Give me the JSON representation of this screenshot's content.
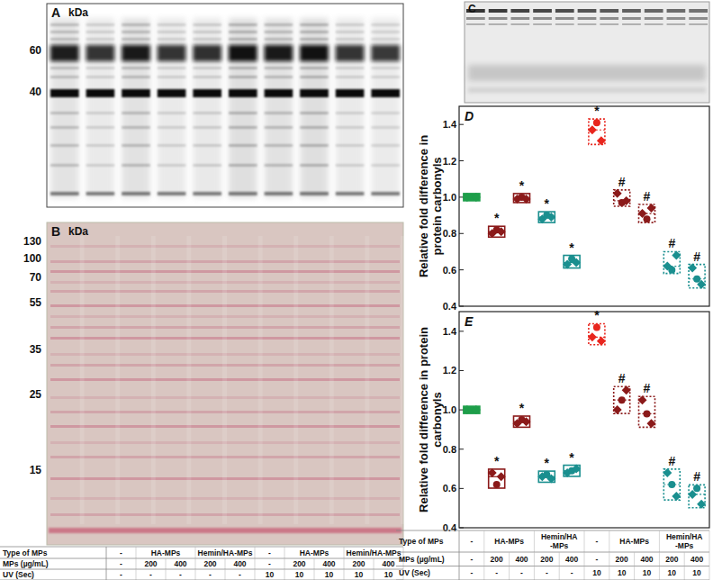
{
  "chart_data": [
    {
      "type": "box",
      "title": "D",
      "ylabel": "Relative fold difference in protein carbonyls",
      "categories": [
        null,
        null,
        null,
        null,
        null,
        null,
        null,
        null,
        null,
        null
      ],
      "colors": [
        "#1e9e4a",
        "#8b1a1a",
        "#8b1a1a",
        "#1a8f8f",
        "#1a8f8f",
        "#e8261e",
        "#8b1a1a",
        "#8b1a1a",
        "#1a8f8f",
        "#1a8f8f"
      ],
      "series": [
        {
          "marker": "diamond",
          "values": [
            1.0,
            0.8,
            0.99,
            0.88,
            0.63,
            1.37,
            1.02,
            0.91,
            0.62,
            0.61
          ]
        },
        {
          "marker": "circle",
          "values": [
            1.0,
            0.82,
            1.0,
            0.9,
            0.66,
            1.41,
            0.97,
            0.88,
            0.6,
            0.55
          ]
        },
        {
          "marker": "diamond",
          "values": [
            1.0,
            0.81,
            0.99,
            0.89,
            0.64,
            1.31,
            0.98,
            0.94,
            0.68,
            0.52
          ]
        }
      ],
      "annotations": [
        {
          "index": 1,
          "text": "*"
        },
        {
          "index": 2,
          "text": "*"
        },
        {
          "index": 3,
          "text": "*"
        },
        {
          "index": 4,
          "text": "*"
        },
        {
          "index": 5,
          "text": "*"
        },
        {
          "index": 6,
          "text": "#"
        },
        {
          "index": 7,
          "text": "#"
        },
        {
          "index": 8,
          "text": "#"
        },
        {
          "index": 9,
          "text": "#"
        }
      ],
      "ylim": [
        0.4,
        1.5
      ],
      "yticks": [
        0.4,
        0.6,
        0.8,
        {
          "value": 1,
          "label": "1.0"
        },
        1.2,
        1.4
      ],
      "grid": false
    },
    {
      "type": "box",
      "title": "E",
      "ylabel": "Relative fold difference in protein carbonyls",
      "categories": [
        null,
        null,
        null,
        null,
        null,
        null,
        null,
        null,
        null,
        null
      ],
      "colors": [
        "#1e9e4a",
        "#8b1a1a",
        "#8b1a1a",
        "#1a8f8f",
        "#1a8f8f",
        "#e8261e",
        "#8b1a1a",
        "#8b1a1a",
        "#1a8f8f",
        "#1a8f8f"
      ],
      "series": [
        {
          "marker": "diamond",
          "values": [
            1.0,
            0.68,
            0.93,
            0.66,
            0.68,
            1.37,
            1.0,
            1.05,
            0.68,
            0.57
          ]
        },
        {
          "marker": "circle",
          "values": [
            1.0,
            0.62,
            0.95,
            0.67,
            0.69,
            1.42,
            1.05,
            0.98,
            0.62,
            0.6
          ]
        },
        {
          "marker": "diamond",
          "values": [
            1.0,
            0.66,
            0.94,
            0.65,
            0.7,
            1.35,
            1.1,
            0.93,
            0.56,
            0.52
          ]
        }
      ],
      "annotations": [
        {
          "index": 1,
          "text": "*"
        },
        {
          "index": 2,
          "text": "*"
        },
        {
          "index": 3,
          "text": "*"
        },
        {
          "index": 4,
          "text": "*"
        },
        {
          "index": 5,
          "text": "*"
        },
        {
          "index": 6,
          "text": "#"
        },
        {
          "index": 7,
          "text": "#"
        },
        {
          "index": 8,
          "text": "#"
        },
        {
          "index": 9,
          "text": "#"
        }
      ],
      "ylim": [
        0.4,
        1.5
      ],
      "yticks": [
        0.4,
        0.6,
        0.8,
        {
          "value": 1,
          "label": "1.0"
        },
        1.2,
        1.4
      ],
      "grid": false
    }
  ],
  "blots": [
    {
      "label": "A",
      "unit": "kDa",
      "markers": [
        60,
        40
      ]
    },
    {
      "label": "B",
      "unit": "kDa",
      "markers": [
        130,
        100,
        70,
        55,
        35,
        25,
        15
      ]
    },
    {
      "label": "C"
    }
  ],
  "tables": [
    {
      "row_labels": [
        "Type of MPs",
        "MPs (µg/mL)",
        "UV (Sec)"
      ],
      "rows": [
        [
          "-",
          "HA-MPs",
          null,
          "Hemin/HA-MPs",
          null,
          "-",
          "HA-MPs",
          null,
          "Hemin/HA-MPs",
          null
        ],
        [
          "-",
          "200",
          "400",
          "200",
          "400",
          "-",
          "200",
          "400",
          "200",
          "400"
        ],
        [
          "-",
          "-",
          "-",
          "-",
          "-",
          "10",
          "10",
          "10",
          "10",
          "10"
        ]
      ]
    },
    {
      "row_labels": [
        "Type of MPs",
        "MPs (µg/mL)",
        "UV (Sec)"
      ],
      "rows": [
        [
          "-",
          "HA-MPs",
          null,
          "Hemin/HA-MPs",
          null,
          "-",
          "HA-MPs",
          null,
          "Hemin/HA-MPs",
          null
        ],
        [
          "-",
          "200",
          "400",
          "200",
          "400",
          "-",
          "200",
          "400",
          "200",
          "400"
        ],
        [
          "-",
          "-",
          "-",
          "-",
          "-",
          "10",
          "10",
          "10",
          "10",
          "10"
        ]
      ]
    }
  ]
}
